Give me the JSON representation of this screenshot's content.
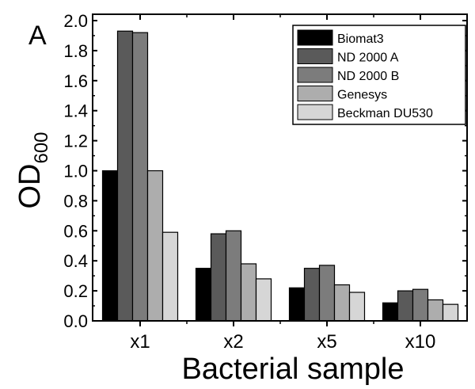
{
  "chart_data": {
    "type": "bar",
    "panel_label": "A",
    "xlabel": "Bacterial sample",
    "ylabel": "OD",
    "ylabel_subscript": "600",
    "categories": [
      "x1",
      "x2",
      "x5",
      "x10"
    ],
    "ylim": [
      0,
      2.0
    ],
    "yticks": [
      "0.0",
      "0.2",
      "0.4",
      "0.6",
      "0.8",
      "1.0",
      "1.2",
      "1.4",
      "1.6",
      "1.8",
      "2.0"
    ],
    "grid": false,
    "legend_position": "top-right",
    "series": [
      {
        "name": "Biomat3",
        "color": "#000000",
        "values": [
          1.0,
          0.35,
          0.22,
          0.12
        ]
      },
      {
        "name": "ND 2000 A",
        "color": "#5a5a5a",
        "values": [
          1.93,
          0.58,
          0.35,
          0.2
        ]
      },
      {
        "name": "ND 2000 B",
        "color": "#7c7c7c",
        "values": [
          1.92,
          0.6,
          0.37,
          0.21
        ]
      },
      {
        "name": "Genesys",
        "color": "#adadad",
        "values": [
          1.0,
          0.38,
          0.24,
          0.14
        ]
      },
      {
        "name": "Beckman DU530",
        "color": "#d6d6d6",
        "values": [
          0.59,
          0.28,
          0.19,
          0.11
        ]
      }
    ]
  }
}
